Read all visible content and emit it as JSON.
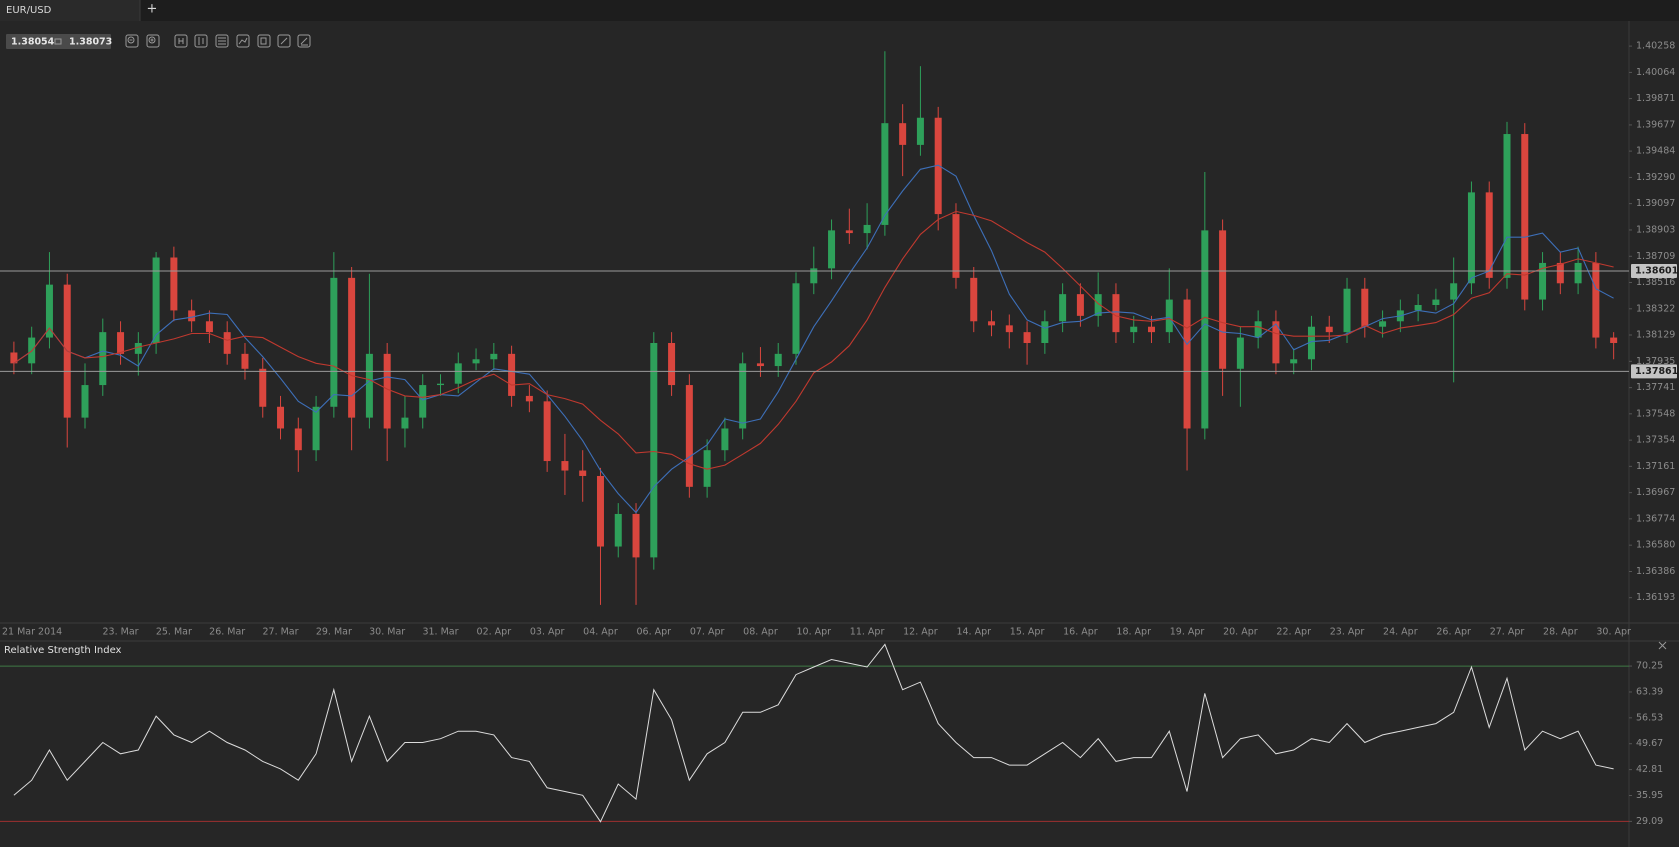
{
  "ui": {
    "tab": "EUR/USD",
    "new_tab": "+",
    "bid": "1.38054",
    "ask": "1.38073"
  },
  "chart_data": [
    {
      "type": "candlestick",
      "categories": [
        "21 Mar 2014",
        null,
        null,
        null,
        null,
        null,
        "23. Mar",
        null,
        null,
        "25. Mar",
        null,
        null,
        "26. Mar",
        null,
        null,
        "27. Mar",
        null,
        null,
        "29. Mar",
        null,
        null,
        "30. Mar",
        null,
        null,
        "31. Mar",
        null,
        null,
        "02. Apr",
        null,
        null,
        "03. Apr",
        null,
        null,
        "04. Apr",
        null,
        null,
        "06. Apr",
        null,
        null,
        "07. Apr",
        null,
        null,
        "08. Apr",
        null,
        null,
        "10. Apr",
        null,
        null,
        "11. Apr",
        null,
        null,
        "12. Apr",
        null,
        null,
        "14. Apr",
        null,
        null,
        "15. Apr",
        null,
        null,
        "16. Apr",
        null,
        null,
        "18. Apr",
        null,
        null,
        "19. Apr",
        null,
        null,
        "20. Apr",
        null,
        null,
        "22. Apr",
        null,
        null,
        "23. Apr",
        null,
        null,
        "24. Apr",
        null,
        null,
        "26. Apr",
        null,
        null,
        "27. Apr",
        null,
        null,
        "28. Apr",
        null,
        null,
        "30. Apr"
      ],
      "open": [
        1.38,
        1.3792,
        1.3811,
        1.385,
        1.3752,
        1.3776,
        1.3815,
        1.3799,
        1.3807,
        1.387,
        1.3831,
        1.3823,
        1.3815,
        1.3799,
        1.3788,
        1.376,
        1.3744,
        1.3728,
        1.376,
        1.3855,
        1.3752,
        1.3799,
        1.3744,
        1.3752,
        1.3776,
        1.3777,
        1.3792,
        1.3795,
        1.3799,
        1.3768,
        1.3764,
        1.372,
        1.3713,
        1.3709,
        1.3657,
        1.3681,
        1.3649,
        1.3807,
        1.3776,
        1.3701,
        1.3728,
        1.3744,
        1.3792,
        1.379,
        1.3799,
        1.3851,
        1.3862,
        1.389,
        1.3888,
        1.3894,
        1.3969,
        1.3953,
        1.3973,
        1.3902,
        1.3855,
        1.3823,
        1.382,
        1.3815,
        1.3807,
        1.3823,
        1.3843,
        1.3827,
        1.3843,
        1.3815,
        1.3819,
        1.3815,
        1.3839,
        1.3744,
        1.389,
        1.3788,
        1.3811,
        1.3823,
        1.3792,
        1.3795,
        1.3819,
        1.3815,
        1.3847,
        1.3819,
        1.3823,
        1.3831,
        1.3835,
        1.3839,
        1.3851,
        1.3918,
        1.3855,
        1.3961,
        1.3839,
        1.3866,
        1.3851,
        1.3866,
        1.3811
      ],
      "high": [
        1.3808,
        1.3819,
        1.3874,
        1.3858,
        1.3792,
        1.3825,
        1.3823,
        1.3815,
        1.3874,
        1.3878,
        1.3839,
        1.3831,
        1.3823,
        1.3807,
        1.3796,
        1.3768,
        1.3752,
        1.3768,
        1.3874,
        1.3863,
        1.3858,
        1.3807,
        1.3768,
        1.3784,
        1.3784,
        1.38,
        1.3803,
        1.3807,
        1.3805,
        1.3776,
        1.3772,
        1.374,
        1.3728,
        1.3715,
        1.3689,
        1.3689,
        1.3815,
        1.3815,
        1.3784,
        1.3736,
        1.3752,
        1.38,
        1.3804,
        1.3807,
        1.3859,
        1.3878,
        1.3898,
        1.3906,
        1.391,
        1.4022,
        1.3983,
        1.4011,
        1.3981,
        1.391,
        1.3863,
        1.3831,
        1.3828,
        1.3823,
        1.3831,
        1.3851,
        1.3851,
        1.3859,
        1.3851,
        1.3827,
        1.3827,
        1.3862,
        1.3847,
        1.3933,
        1.3898,
        1.3819,
        1.3831,
        1.3831,
        1.3803,
        1.3827,
        1.3827,
        1.3855,
        1.3855,
        1.3831,
        1.3839,
        1.3843,
        1.3847,
        1.387,
        1.3926,
        1.3926,
        1.397,
        1.3969,
        1.3874,
        1.3874,
        1.3878,
        1.3874,
        1.3815
      ],
      "low": [
        1.3784,
        1.3784,
        1.3803,
        1.373,
        1.3744,
        1.3768,
        1.3791,
        1.3783,
        1.3799,
        1.3823,
        1.3815,
        1.3807,
        1.3791,
        1.378,
        1.3752,
        1.3736,
        1.3712,
        1.372,
        1.3752,
        1.3728,
        1.3744,
        1.372,
        1.373,
        1.3744,
        1.3768,
        1.377,
        1.3787,
        1.3787,
        1.376,
        1.3756,
        1.3712,
        1.3695,
        1.369,
        1.3614,
        1.3649,
        1.3614,
        1.364,
        1.3768,
        1.3693,
        1.3693,
        1.372,
        1.3736,
        1.3782,
        1.3782,
        1.3791,
        1.3843,
        1.3854,
        1.388,
        1.3876,
        1.3886,
        1.393,
        1.3945,
        1.389,
        1.3847,
        1.3815,
        1.3812,
        1.3803,
        1.3791,
        1.3799,
        1.3815,
        1.3819,
        1.3819,
        1.3807,
        1.3807,
        1.3807,
        1.3807,
        1.3713,
        1.3736,
        1.3768,
        1.376,
        1.3803,
        1.3784,
        1.3784,
        1.3787,
        1.3807,
        1.3807,
        1.3811,
        1.3811,
        1.3815,
        1.3823,
        1.3831,
        1.3778,
        1.3843,
        1.3847,
        1.3847,
        1.3831,
        1.3831,
        1.3843,
        1.3843,
        1.3803,
        1.3795
      ],
      "close": [
        1.3792,
        1.3811,
        1.385,
        1.3752,
        1.3776,
        1.3815,
        1.3799,
        1.3807,
        1.387,
        1.3831,
        1.3823,
        1.3815,
        1.3799,
        1.3788,
        1.376,
        1.3744,
        1.3728,
        1.376,
        1.3855,
        1.3752,
        1.3799,
        1.3744,
        1.3752,
        1.3776,
        1.3777,
        1.3792,
        1.3795,
        1.3799,
        1.3768,
        1.3764,
        1.372,
        1.3713,
        1.3709,
        1.3657,
        1.3681,
        1.3649,
        1.3807,
        1.3776,
        1.3701,
        1.3728,
        1.3744,
        1.3792,
        1.379,
        1.3799,
        1.3851,
        1.3862,
        1.389,
        1.3888,
        1.3894,
        1.3969,
        1.3953,
        1.3973,
        1.3902,
        1.3855,
        1.3823,
        1.382,
        1.3815,
        1.3807,
        1.3823,
        1.3843,
        1.3827,
        1.3843,
        1.3815,
        1.3819,
        1.3815,
        1.3839,
        1.3744,
        1.389,
        1.3788,
        1.3811,
        1.3823,
        1.3792,
        1.3795,
        1.3819,
        1.3815,
        1.3847,
        1.3819,
        1.3823,
        1.3831,
        1.3835,
        1.3839,
        1.3851,
        1.3918,
        1.3855,
        1.3961,
        1.3839,
        1.3866,
        1.3851,
        1.3866,
        1.3811,
        1.3807
      ],
      "up_color": "#2ea05a",
      "down_color": "#d9463e",
      "overlays": [
        {
          "color": "#3d6fb8",
          "values": [
            1.3792,
            1.3801,
            1.3818,
            1.3801,
            1.3796,
            1.3801,
            1.3798,
            1.379,
            1.3813,
            1.3824,
            1.3826,
            1.3829,
            1.3828,
            1.3811,
            1.3797,
            1.3781,
            1.3764,
            1.3756,
            1.3769,
            1.3768,
            1.3779,
            1.3782,
            1.378,
            1.3765,
            1.3769,
            1.3768,
            1.3778,
            1.3788,
            1.3786,
            1.3784,
            1.3769,
            1.3753,
            1.3735,
            1.3713,
            1.3696,
            1.3682,
            1.3701,
            1.3714,
            1.3723,
            1.3732,
            1.3751,
            1.3748,
            1.3751,
            1.3771,
            1.3795,
            1.3819,
            1.3838,
            1.3858,
            1.3877,
            1.3901,
            1.3919,
            1.3935,
            1.3938,
            1.393,
            1.3901,
            1.3875,
            1.3843,
            1.3824,
            1.3818,
            1.3822,
            1.3823,
            1.3829,
            1.383,
            1.3829,
            1.3824,
            1.3826,
            1.3806,
            1.3821,
            1.3815,
            1.3814,
            1.3811,
            1.3821,
            1.3802,
            1.3808,
            1.3809,
            1.3814,
            1.3819,
            1.3825,
            1.3827,
            1.3831,
            1.3829,
            1.3836,
            1.3855,
            1.386,
            1.3885,
            1.3885,
            1.3888,
            1.3874,
            1.3877,
            1.3847,
            1.384
          ]
        },
        {
          "color": "#c0392f",
          "values": [
            1.3792,
            1.3801,
            1.3818,
            1.3801,
            1.3796,
            1.3797,
            1.38,
            1.3804,
            1.3807,
            1.381,
            1.3814,
            1.3814,
            1.3809,
            1.3812,
            1.3811,
            1.3804,
            1.3797,
            1.3792,
            1.379,
            1.3783,
            1.378,
            1.3773,
            1.3768,
            1.3767,
            1.3769,
            1.3774,
            1.378,
            1.3784,
            1.3776,
            1.3777,
            1.3769,
            1.3766,
            1.3762,
            1.375,
            1.374,
            1.3726,
            1.3727,
            1.3725,
            1.3718,
            1.3714,
            1.3717,
            1.3725,
            1.3733,
            1.3747,
            1.3764,
            1.3785,
            1.3793,
            1.3805,
            1.3824,
            1.3848,
            1.3869,
            1.3887,
            1.3898,
            1.3904,
            1.3901,
            1.3897,
            1.3889,
            1.3881,
            1.3874,
            1.3862,
            1.3849,
            1.3836,
            1.3827,
            1.3824,
            1.3823,
            1.3825,
            1.3818,
            1.3826,
            1.3822,
            1.3819,
            1.3819,
            1.3814,
            1.3812,
            1.3812,
            1.3812,
            1.3813,
            1.382,
            1.3814,
            1.3818,
            1.382,
            1.3822,
            1.3828,
            1.384,
            1.3844,
            1.3858,
            1.3857,
            1.3862,
            1.3865,
            1.3869,
            1.3866,
            1.3863
          ]
        }
      ],
      "hlines": [
        1.38601,
        1.37861
      ],
      "ylim": [
        1.36005,
        1.4044
      ],
      "yticks": [
        1.36193,
        1.36386,
        {
          "value": 1.3658,
          "label": "1.36580"
        },
        1.36774,
        1.36967,
        1.37161,
        1.37354,
        1.37548,
        1.37741,
        1.37935,
        1.38129,
        1.38322,
        1.38516,
        1.38709,
        1.38903,
        1.39097,
        {
          "value": 1.3929,
          "label": "1.39290"
        },
        1.39484,
        1.39677,
        1.39871,
        1.40064,
        1.40258
      ]
    },
    {
      "type": "line",
      "title": "Relative Strength Index",
      "color": "#dcdcdc",
      "values": [
        36,
        40,
        48,
        40,
        45,
        50,
        47,
        48,
        57,
        52,
        50,
        53,
        50,
        48,
        45,
        43,
        40,
        47,
        64,
        45,
        57,
        45,
        50,
        50,
        51,
        53,
        53,
        52,
        46,
        45,
        38,
        37,
        36,
        29,
        39,
        35,
        64,
        56,
        40,
        47,
        50,
        58,
        58,
        60,
        68,
        70,
        72,
        71,
        70,
        76,
        64,
        66,
        55,
        50,
        46,
        46,
        44,
        44,
        47,
        50,
        46,
        51,
        45,
        46,
        46,
        53,
        37,
        63,
        46,
        51,
        52,
        47,
        48,
        51,
        50,
        55,
        50,
        52,
        53,
        54,
        55,
        58,
        70,
        54,
        67,
        48,
        53,
        51,
        53,
        44,
        43
      ],
      "levels": [
        {
          "value": 70.25,
          "color": "#3f7a45"
        },
        {
          "value": 29.09,
          "color": "#9e3030"
        }
      ],
      "ylim": [
        22.3,
        76.5
      ],
      "yticks": [
        29.09,
        35.95,
        42.81,
        49.67,
        56.53,
        63.39,
        70.25
      ]
    }
  ]
}
